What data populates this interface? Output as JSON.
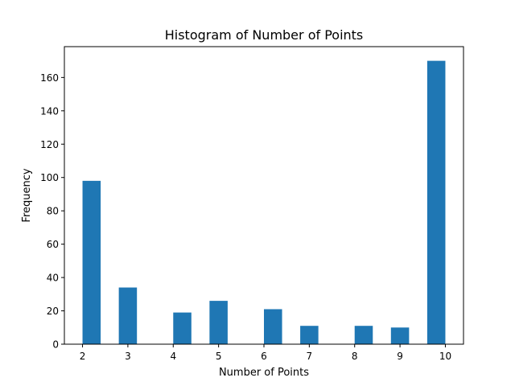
{
  "chart_data": {
    "type": "bar",
    "title": "Histogram of Number of Points",
    "xlabel": "Number of Points",
    "ylabel": "Frequency",
    "bins": [
      {
        "x0": 2.0,
        "x1": 2.4,
        "value": 98
      },
      {
        "x0": 2.8,
        "x1": 3.2,
        "value": 34
      },
      {
        "x0": 4.0,
        "x1": 4.4,
        "value": 19
      },
      {
        "x0": 4.8,
        "x1": 5.2,
        "value": 26
      },
      {
        "x0": 6.0,
        "x1": 6.4,
        "value": 21
      },
      {
        "x0": 6.8,
        "x1": 7.2,
        "value": 11
      },
      {
        "x0": 7.6,
        "x1": 8.0,
        "value": 0
      },
      {
        "x0": 8.0,
        "x1": 8.4,
        "value": 11
      },
      {
        "x0": 8.8,
        "x1": 9.2,
        "value": 10
      },
      {
        "x0": 9.6,
        "x1": 10.0,
        "value": 170
      }
    ],
    "xticks": [
      "2",
      "3",
      "4",
      "5",
      "6",
      "7",
      "8",
      "9",
      "10"
    ],
    "yticks": [
      "0",
      "20",
      "40",
      "60",
      "80",
      "100",
      "120",
      "140",
      "160"
    ],
    "xlim": [
      1.6,
      10.4
    ],
    "ylim": [
      0,
      178.5
    ],
    "grid": false,
    "bar_color": "#1f77b4"
  }
}
